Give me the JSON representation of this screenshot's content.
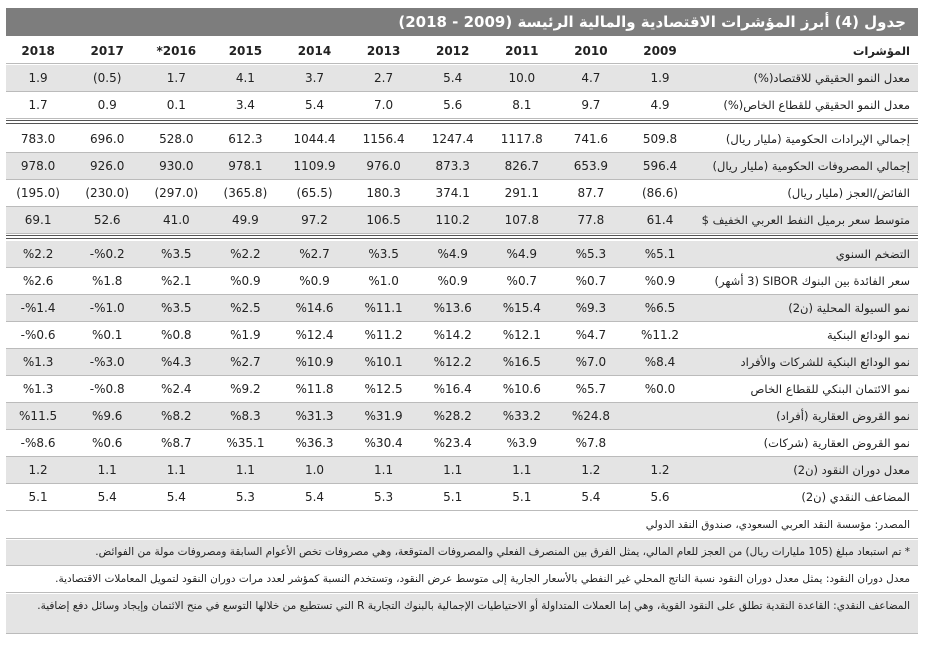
{
  "title": "جدول (4) أبرز المؤشرات الاقتصادية والمالية الرئيسة (2009 - 2018)",
  "header": {
    "label": "المؤشرات",
    "years": [
      "2009",
      "2010",
      "2011",
      "2012",
      "2013",
      "2014",
      "2015",
      "*2016",
      "2017",
      "2018"
    ]
  },
  "sections": [
    [
      {
        "label": "معدل النمو الحقيقي للاقتصاد(%)",
        "values": [
          "1.9",
          "4.7",
          "10.0",
          "5.4",
          "2.7",
          "3.7",
          "4.1",
          "1.7",
          "(0.5)",
          "1.9"
        ]
      },
      {
        "label": "معدل النمو الحقيقي للقطاع الخاص(%)",
        "values": [
          "4.9",
          "9.7",
          "8.1",
          "5.6",
          "7.0",
          "5.4",
          "3.4",
          "0.1",
          "0.9",
          "1.7"
        ]
      }
    ],
    [
      {
        "label": "إجمالي الإيرادات الحكومية (مليار ريال)",
        "values": [
          "509.8",
          "741.6",
          "1117.8",
          "1247.4",
          "1156.4",
          "1044.4",
          "612.3",
          "528.0",
          "696.0",
          "783.0"
        ]
      },
      {
        "label": "إجمالي المصروفات الحكومية (مليار ريال)",
        "values": [
          "596.4",
          "653.9",
          "826.7",
          "873.3",
          "976.0",
          "1109.9",
          "978.1",
          "930.0",
          "926.0",
          "978.0"
        ]
      },
      {
        "label": "الفائض/العجز (مليار ريال)",
        "values": [
          "(86.6)",
          "87.7",
          "291.1",
          "374.1",
          "180.3",
          "(65.5)",
          "(365.8)",
          "(297.0)",
          "(230.0)",
          "(195.0)"
        ]
      },
      {
        "label": "متوسط سعر برميل النفط العربي الخفيف $",
        "values": [
          "61.4",
          "77.8",
          "107.8",
          "110.2",
          "106.5",
          "97.2",
          "49.9",
          "41.0",
          "52.6",
          "69.1"
        ]
      }
    ],
    [
      {
        "label": "التضخم السنوي",
        "values": [
          "%5.1",
          "%5.3",
          "%4.9",
          "%4.9",
          "%3.5",
          "%2.7",
          "%2.2",
          "%3.5",
          "-%0.2",
          "%2.2"
        ]
      },
      {
        "label": "سعر الفائدة بين البنوك SIBOR (3 أشهر)",
        "values": [
          "%0.9",
          "%0.7",
          "%0.7",
          "%0.9",
          "%1.0",
          "%0.9",
          "%0.9",
          "%2.1",
          "%1.8",
          "%2.6"
        ]
      },
      {
        "label": "نمو السيولة المحلية (ن2)",
        "values": [
          "%6.5",
          "%9.3",
          "%15.4",
          "%13.6",
          "%11.1",
          "%14.6",
          "%2.5",
          "%3.5",
          "-%1.0",
          "-%1.4"
        ]
      },
      {
        "label": "نمو الودائع البنكية",
        "values": [
          "%11.2",
          "%4.7",
          "%12.1",
          "%14.2",
          "%11.2",
          "%12.4",
          "%1.9",
          "%0.8",
          "%0.1",
          "-%0.6"
        ]
      },
      {
        "label": "نمو الودائع البنكية للشركات والأفراد",
        "values": [
          "%8.4",
          "%7.0",
          "%16.5",
          "%12.2",
          "%10.1",
          "%10.9",
          "%2.7",
          "%4.3",
          "-%3.0",
          "%1.3"
        ]
      },
      {
        "label": "نمو الائتمان البنكي للقطاع الخاص",
        "values": [
          "%0.0",
          "%5.7",
          "%10.6",
          "%16.4",
          "%12.5",
          "%11.8",
          "%9.2",
          "%2.4",
          "-%0.8",
          "%1.3"
        ]
      },
      {
        "label": "نمو القروض العقارية (أفراد)",
        "values": [
          null,
          "%24.8",
          "%33.2",
          "%28.2",
          "%31.9",
          "%31.3",
          "%8.3",
          "%8.2",
          "%9.6",
          "%11.5"
        ]
      },
      {
        "label": "نمو القروض العقارية (شركات)",
        "values": [
          null,
          "%7.8",
          "%3.9",
          "%23.4",
          "%30.4",
          "%36.3",
          "%35.1",
          "%8.7",
          "%0.6",
          "-%8.6"
        ]
      },
      {
        "label": "معدل دوران النقود (ن2)",
        "values": [
          "1.2",
          "1.2",
          "1.1",
          "1.1",
          "1.1",
          "1.0",
          "1.1",
          "1.1",
          "1.1",
          "1.2"
        ]
      },
      {
        "label": "المضاعف النقدي (ن2)",
        "values": [
          "5.6",
          "5.4",
          "5.1",
          "5.1",
          "5.3",
          "5.4",
          "5.3",
          "5.4",
          "5.4",
          "5.1"
        ]
      }
    ]
  ],
  "footnotes": [
    "المصدر: مؤسسة النقد العربي السعودي، صندوق النقد الدولي",
    "* تم استبعاد مبلغ (105 مليارات ريال) من العجز للعام المالي، يمثل الفرق بين المنصرف الفعلي والمصروفات المتوقعة، وهي مصروفات تخص الأعوام السابقة ومصروفات مولة من الفوائض.",
    "معدل دوران النقود: يمثل معدل دوران النقود نسبة الناتج المحلي غير النفطي بالأسعار الجارية إلى متوسط عرض النقود، وتستخدم النسبة كمؤشر لعدد مرات دوران النقود لتمويل المعاملات الاقتصادية.",
    "المضاعف النقدي: القاعدة النقدية تطلق على النقود القوية، وهي إما العملات المتداولة أو الاحتياطيات الإجمالية بالبنوك التجارية R التي تستطيع من خلالها التوسع في منح الائتمان وإيجاد وسائل دفع إضافية."
  ]
}
